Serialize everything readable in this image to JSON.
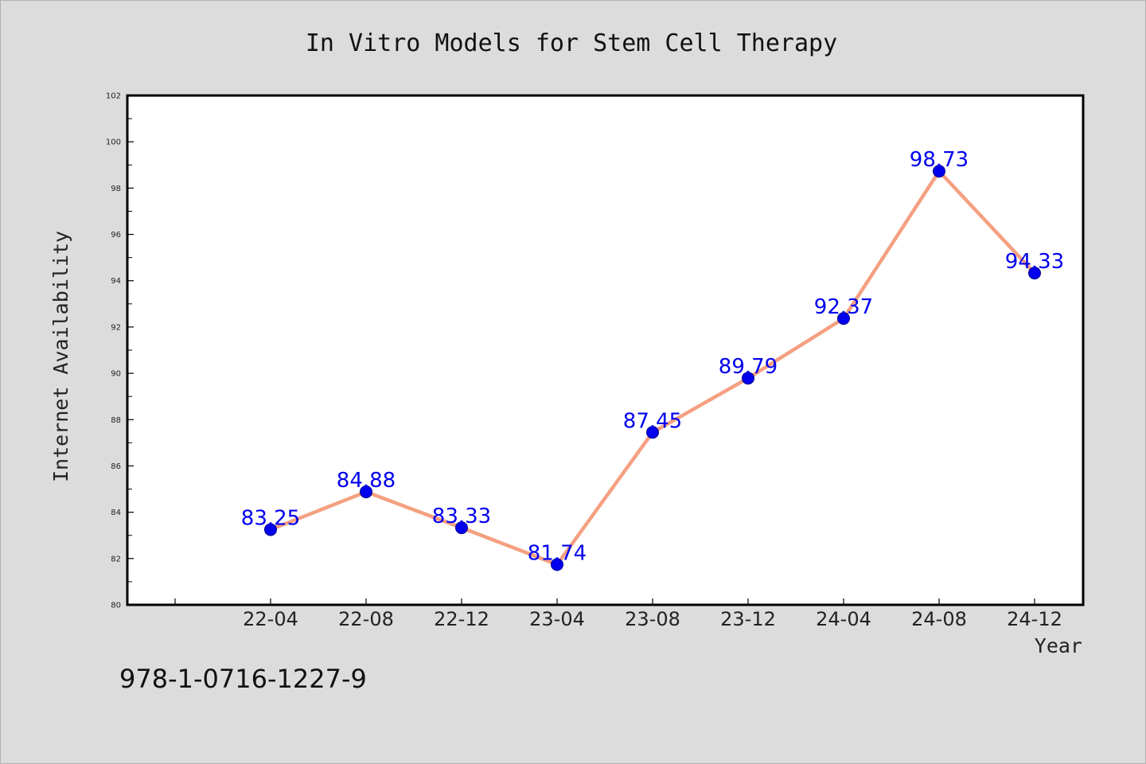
{
  "chart_data": {
    "type": "line",
    "title": "In Vitro Models for Stem Cell Therapy",
    "xlabel": "Year",
    "ylabel": "Internet Availability",
    "categories": [
      "22-04",
      "22-08",
      "22-12",
      "23-04",
      "23-08",
      "23-12",
      "24-04",
      "24-08",
      "24-12"
    ],
    "series": [
      {
        "values": [
          83.25,
          84.88,
          83.33,
          81.74,
          87.45,
          89.79,
          92.37,
          98.73,
          94.33
        ]
      }
    ],
    "data_labels": [
      "83.25",
      "84.88",
      "83.33",
      "81.74",
      "87.45",
      "89.79",
      "92.37",
      "98.73",
      "94.33"
    ],
    "ylim": [
      80,
      102
    ],
    "yticks": [
      80,
      82,
      84,
      86,
      88,
      90,
      92,
      94,
      96,
      98,
      100,
      102
    ],
    "grid": false,
    "legend": "none",
    "line_color": "#f4a081",
    "marker_color": "#0000ee",
    "label_color": "#0000ee",
    "background_color": "#dcdcdc",
    "plot_background": "#ffffff"
  },
  "footer": {
    "isbn": "978-1-0716-1227-9"
  }
}
